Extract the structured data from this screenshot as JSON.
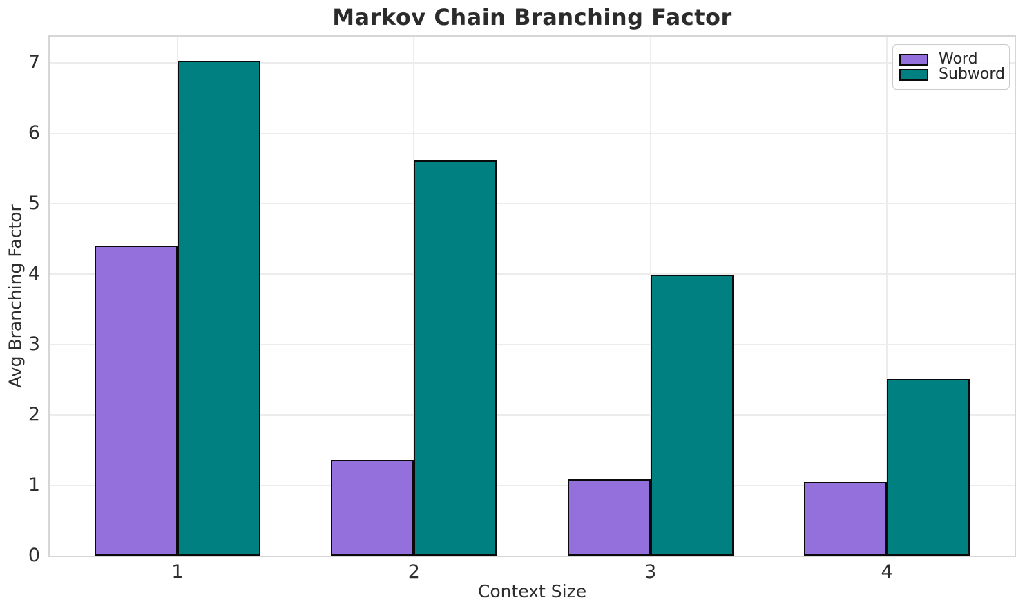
{
  "chart_data": {
    "type": "bar",
    "title": "Markov Chain Branching Factor",
    "xlabel": "Context Size",
    "ylabel": "Avg Branching Factor",
    "categories": [
      "1",
      "2",
      "3",
      "4"
    ],
    "series": [
      {
        "name": "Word",
        "color": "#9370DB",
        "values": [
          4.39,
          1.35,
          1.08,
          1.04
        ]
      },
      {
        "name": "Subword",
        "color": "#008080",
        "values": [
          7.02,
          5.61,
          3.98,
          2.5
        ]
      }
    ],
    "bar_edge_color": "#0a0a0a",
    "ylim": [
      0,
      7.37
    ],
    "yticks": [
      0,
      1,
      2,
      3,
      4,
      5,
      6,
      7
    ],
    "xlim": [
      0.46,
      4.54
    ],
    "bar_width_units": 0.35,
    "grid": true,
    "legend_position": "upper right"
  }
}
